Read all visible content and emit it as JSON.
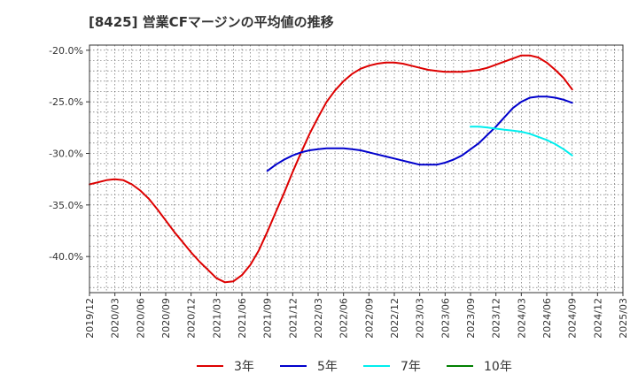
{
  "chart_data": {
    "type": "line",
    "title": "[8425]  営業CFマージンの平均値の推移",
    "xlabel": "",
    "ylabel": "",
    "x_ticks": [
      "2019/12",
      "2020/03",
      "2020/06",
      "2020/09",
      "2020/12",
      "2021/03",
      "2021/06",
      "2021/09",
      "2021/12",
      "2022/03",
      "2022/06",
      "2022/09",
      "2022/12",
      "2023/03",
      "2023/06",
      "2023/09",
      "2023/12",
      "2024/03",
      "2024/06",
      "2024/09",
      "2024/12",
      "2025/03"
    ],
    "y_ticks": [
      -20.0,
      -25.0,
      -30.0,
      -35.0,
      -40.0
    ],
    "y_tick_labels": [
      "-20.0%",
      "-25.0%",
      "-30.0%",
      "-35.0%",
      "-40.0%"
    ],
    "ylim": [
      -43.5,
      -19.5
    ],
    "grid": true,
    "legend_position": "bottom",
    "series": [
      {
        "name": "3年",
        "color": "#dd0000",
        "x": [
          "2019/12",
          "2020/01",
          "2020/02",
          "2020/03",
          "2020/04",
          "2020/05",
          "2020/06",
          "2020/07",
          "2020/08",
          "2020/09",
          "2020/10",
          "2020/11",
          "2020/12",
          "2021/01",
          "2021/02",
          "2021/03",
          "2021/04",
          "2021/05",
          "2021/06",
          "2021/07",
          "2021/08",
          "2021/09",
          "2021/10",
          "2021/11",
          "2021/12",
          "2022/01",
          "2022/02",
          "2022/03",
          "2022/04",
          "2022/05",
          "2022/06",
          "2022/07",
          "2022/08",
          "2022/09",
          "2022/10",
          "2022/11",
          "2022/12",
          "2023/01",
          "2023/02",
          "2023/03",
          "2023/04",
          "2023/05",
          "2023/06",
          "2023/07",
          "2023/08",
          "2023/09",
          "2023/10",
          "2023/11",
          "2023/12",
          "2024/01",
          "2024/02",
          "2024/03",
          "2024/04",
          "2024/05",
          "2024/06",
          "2024/07",
          "2024/08",
          "2024/09"
        ],
        "values": [
          -33.0,
          -32.8,
          -32.6,
          -32.5,
          -32.6,
          -33.0,
          -33.6,
          -34.4,
          -35.4,
          -36.5,
          -37.6,
          -38.6,
          -39.6,
          -40.5,
          -41.3,
          -42.1,
          -42.5,
          -42.4,
          -41.8,
          -40.8,
          -39.4,
          -37.6,
          -35.7,
          -33.8,
          -31.8,
          -29.9,
          -28.1,
          -26.5,
          -25.0,
          -23.9,
          -23.0,
          -22.3,
          -21.8,
          -21.5,
          -21.3,
          -21.2,
          -21.2,
          -21.3,
          -21.5,
          -21.7,
          -21.9,
          -22.0,
          -22.1,
          -22.1,
          -22.1,
          -22.0,
          -21.9,
          -21.7,
          -21.4,
          -21.1,
          -20.8,
          -20.5,
          -20.5,
          -20.7,
          -21.2,
          -21.9,
          -22.7,
          -23.8
        ]
      },
      {
        "name": "5年",
        "color": "#0000cc",
        "x": [
          "2021/09",
          "2021/10",
          "2021/11",
          "2021/12",
          "2022/01",
          "2022/02",
          "2022/03",
          "2022/04",
          "2022/05",
          "2022/06",
          "2022/07",
          "2022/08",
          "2022/09",
          "2022/10",
          "2022/11",
          "2022/12",
          "2023/01",
          "2023/02",
          "2023/03",
          "2023/04",
          "2023/05",
          "2023/06",
          "2023/07",
          "2023/08",
          "2023/09",
          "2023/10",
          "2023/11",
          "2023/12",
          "2024/01",
          "2024/02",
          "2024/03",
          "2024/04",
          "2024/05",
          "2024/06",
          "2024/07",
          "2024/08",
          "2024/09"
        ],
        "values": [
          -31.7,
          -31.1,
          -30.6,
          -30.2,
          -29.9,
          -29.7,
          -29.6,
          -29.5,
          -29.5,
          -29.5,
          -29.6,
          -29.7,
          -29.9,
          -30.1,
          -30.3,
          -30.5,
          -30.7,
          -30.9,
          -31.1,
          -31.1,
          -31.1,
          -30.9,
          -30.6,
          -30.2,
          -29.6,
          -29.0,
          -28.2,
          -27.4,
          -26.5,
          -25.6,
          -25.0,
          -24.6,
          -24.5,
          -24.5,
          -24.6,
          -24.8,
          -25.1
        ]
      },
      {
        "name": "7年",
        "color": "#00eeee",
        "x": [
          "2023/09",
          "2023/10",
          "2023/11",
          "2023/12",
          "2024/01",
          "2024/02",
          "2024/03",
          "2024/04",
          "2024/05",
          "2024/06",
          "2024/07",
          "2024/08",
          "2024/09"
        ],
        "values": [
          -27.4,
          -27.4,
          -27.5,
          -27.6,
          -27.7,
          -27.8,
          -27.9,
          -28.1,
          -28.4,
          -28.7,
          -29.1,
          -29.6,
          -30.2
        ]
      },
      {
        "name": "10年",
        "color": "#008000",
        "x": [],
        "values": []
      }
    ]
  }
}
